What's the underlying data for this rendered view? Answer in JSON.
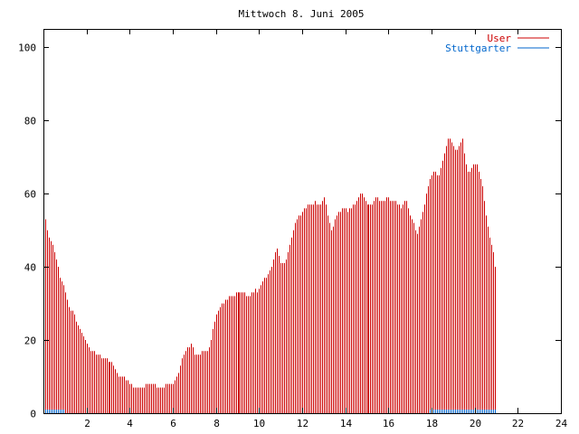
{
  "chart_data": {
    "type": "bar",
    "title": "Mittwoch 8. Juni 2005",
    "xlabel": "",
    "ylabel": "",
    "xlim": [
      0,
      24
    ],
    "ylim": [
      0,
      105
    ],
    "x_ticks": [
      2,
      4,
      6,
      8,
      10,
      12,
      14,
      16,
      18,
      20,
      22,
      24
    ],
    "y_ticks": [
      0,
      20,
      40,
      60,
      80,
      100
    ],
    "grid": false,
    "legend_position": "top-right",
    "series": [
      {
        "name": "User",
        "color": "#cc0000",
        "interval_minutes": 5,
        "values": [
          55,
          53,
          50,
          48,
          47,
          46,
          44,
          42,
          40,
          37,
          36,
          35,
          33,
          31,
          29,
          28,
          28,
          27,
          25,
          24,
          23,
          22,
          21,
          20,
          19,
          18,
          17,
          17,
          17,
          16,
          16,
          16,
          15,
          15,
          15,
          15,
          14,
          14,
          14,
          13,
          12,
          11,
          10,
          10,
          10,
          10,
          9,
          9,
          8,
          8,
          7,
          7,
          7,
          7,
          7,
          7,
          7,
          8,
          8,
          8,
          8,
          8,
          8,
          7,
          7,
          7,
          7,
          7,
          8,
          8,
          8,
          8,
          8,
          9,
          10,
          11,
          13,
          15,
          16,
          17,
          18,
          18,
          19,
          18,
          16,
          16,
          16,
          16,
          17,
          17,
          17,
          17,
          18,
          20,
          23,
          25,
          27,
          28,
          29,
          30,
          30,
          31,
          31,
          32,
          32,
          32,
          32,
          33,
          33,
          33,
          33,
          33,
          33,
          32,
          32,
          32,
          33,
          33,
          34,
          33,
          34,
          35,
          36,
          37,
          37,
          38,
          39,
          40,
          42,
          44,
          45,
          43,
          41,
          41,
          41,
          42,
          44,
          46,
          48,
          50,
          52,
          53,
          54,
          54,
          55,
          56,
          56,
          57,
          57,
          57,
          57,
          58,
          57,
          57,
          57,
          58,
          59,
          57,
          54,
          52,
          50,
          51,
          53,
          54,
          55,
          55,
          56,
          56,
          56,
          55,
          56,
          56,
          57,
          57,
          58,
          59,
          60,
          60,
          59,
          58,
          57,
          57,
          57,
          57,
          58,
          59,
          59,
          58,
          58,
          58,
          58,
          59,
          59,
          58,
          58,
          58,
          58,
          57,
          57,
          56,
          57,
          58,
          58,
          56,
          54,
          53,
          52,
          50,
          49,
          51,
          53,
          55,
          57,
          60,
          62,
          64,
          65,
          66,
          66,
          65,
          65,
          67,
          69,
          71,
          73,
          75,
          75,
          74,
          73,
          72,
          72,
          73,
          74,
          75,
          71,
          68,
          66,
          66,
          67,
          68,
          68,
          68,
          66,
          64,
          62,
          58,
          54,
          51,
          48,
          46,
          44,
          40
        ]
      },
      {
        "name": "Stuttgarter",
        "color": "#0066cc",
        "interval_minutes": 5,
        "values": [
          1,
          1,
          1,
          1,
          1,
          1,
          1,
          1,
          1,
          1,
          1,
          1,
          0,
          0,
          0,
          0,
          0,
          0,
          0,
          0,
          0,
          0,
          0,
          0,
          0,
          0,
          0,
          0,
          0,
          0,
          0,
          0,
          0,
          0,
          0,
          0,
          0,
          0,
          0,
          0,
          0,
          0,
          0,
          0,
          0,
          0,
          0,
          0,
          0,
          0,
          0,
          0,
          0,
          0,
          0,
          0,
          0,
          0,
          0,
          0,
          0,
          0,
          0,
          0,
          0,
          0,
          0,
          0,
          0,
          0,
          0,
          0,
          0,
          0,
          0,
          0,
          0,
          0,
          0,
          0,
          0,
          0,
          0,
          0,
          0,
          0,
          0,
          0,
          0,
          0,
          0,
          0,
          0,
          0,
          0,
          0,
          0,
          0,
          0,
          0,
          0,
          0,
          0,
          0,
          0,
          0,
          0,
          0,
          0,
          0,
          0,
          0,
          0,
          0,
          0,
          0,
          0,
          0,
          0,
          0,
          0,
          0,
          0,
          0,
          0,
          0,
          0,
          0,
          0,
          0,
          0,
          0,
          0,
          0,
          0,
          0,
          0,
          0,
          0,
          0,
          0,
          0,
          0,
          0,
          0,
          0,
          0,
          0,
          0,
          0,
          0,
          0,
          0,
          0,
          0,
          0,
          0,
          0,
          0,
          0,
          0,
          0,
          0,
          0,
          0,
          0,
          0,
          0,
          0,
          0,
          0,
          0,
          0,
          0,
          0,
          0,
          0,
          0,
          0,
          0,
          0,
          0,
          0,
          0,
          0,
          0,
          0,
          0,
          0,
          0,
          0,
          0,
          0,
          0,
          0,
          0,
          0,
          0,
          0,
          0,
          0,
          0,
          0,
          0,
          0,
          0,
          0,
          0,
          0,
          0,
          0,
          0,
          0,
          0,
          0,
          1,
          1,
          1,
          1,
          1,
          1,
          1,
          1,
          1,
          1,
          1,
          1,
          1,
          1,
          1,
          1,
          1,
          1,
          1,
          1,
          1,
          1,
          1,
          1,
          1,
          1,
          1,
          1,
          1,
          1,
          1,
          1,
          1,
          1,
          1,
          1,
          1
        ]
      }
    ]
  }
}
